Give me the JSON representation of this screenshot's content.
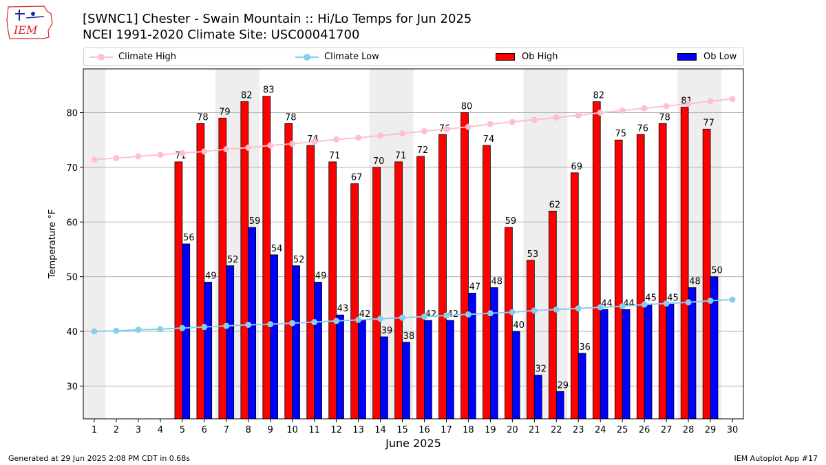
{
  "header": {
    "title_line1": "[SWNC1] Chester - Swain Mountain :: Hi/Lo Temps for Jun 2025",
    "title_line2": "NCEI 1991-2020 Climate Site: USC00041700",
    "logo_text": "IEM"
  },
  "footer": {
    "generated": "Generated at 29 Jun 2025 2:08 PM CDT in 0.68s",
    "app": "IEM Autoplot App #17"
  },
  "colors": {
    "ob_high": "#ff0000",
    "ob_low": "#0000ff",
    "climate_high": "#ffc0cb",
    "climate_low": "#87ceeb",
    "weekend_shade": "#eeeeee"
  },
  "chart_data": {
    "type": "bar",
    "xlabel": "June 2025",
    "ylabel": "Temperature °F",
    "xlim": [
      0.5,
      30.5
    ],
    "ylim": [
      24,
      88
    ],
    "yticks": [
      30,
      40,
      50,
      60,
      70,
      80
    ],
    "grid": "horizontal",
    "legend_position": "top",
    "days": [
      1,
      2,
      3,
      4,
      5,
      6,
      7,
      8,
      9,
      10,
      11,
      12,
      13,
      14,
      15,
      16,
      17,
      18,
      19,
      20,
      21,
      22,
      23,
      24,
      25,
      26,
      27,
      28,
      29,
      30
    ],
    "weekend_shading": [
      [
        1,
        1
      ],
      [
        7,
        8
      ],
      [
        14,
        15
      ],
      [
        21,
        22
      ],
      [
        28,
        29
      ]
    ],
    "series": [
      {
        "name": "Climate High",
        "kind": "line",
        "color": "#ffc0cb",
        "values": [
          71.4,
          71.7,
          72.0,
          72.3,
          72.6,
          72.9,
          73.3,
          73.6,
          74.0,
          74.3,
          74.7,
          75.1,
          75.4,
          75.8,
          76.2,
          76.6,
          77.0,
          77.4,
          77.9,
          78.3,
          78.7,
          79.1,
          79.5,
          80.0,
          80.4,
          80.8,
          81.2,
          81.6,
          82.1,
          82.5
        ]
      },
      {
        "name": "Climate Low",
        "kind": "line",
        "color": "#87ceeb",
        "values": [
          40.0,
          40.1,
          40.3,
          40.4,
          40.6,
          40.8,
          41.0,
          41.2,
          41.3,
          41.5,
          41.7,
          41.9,
          42.1,
          42.3,
          42.5,
          42.7,
          42.9,
          43.1,
          43.3,
          43.5,
          43.8,
          44.0,
          44.2,
          44.4,
          44.6,
          44.9,
          45.1,
          45.3,
          45.6,
          45.8
        ]
      },
      {
        "name": "Ob High",
        "kind": "bar",
        "color": "#ff0000",
        "values": [
          null,
          null,
          null,
          null,
          71,
          78,
          79,
          82,
          83,
          78,
          74,
          71,
          67,
          70,
          71,
          72,
          76,
          80,
          74,
          59,
          53,
          62,
          69,
          82,
          75,
          76,
          78,
          81,
          77,
          null
        ]
      },
      {
        "name": "Ob Low",
        "kind": "bar",
        "color": "#0000ff",
        "values": [
          null,
          null,
          null,
          null,
          56,
          49,
          52,
          59,
          54,
          52,
          49,
          43,
          42,
          39,
          38,
          42,
          42,
          47,
          48,
          40,
          32,
          29,
          36,
          44,
          44,
          45,
          45,
          48,
          50,
          null
        ]
      }
    ]
  }
}
